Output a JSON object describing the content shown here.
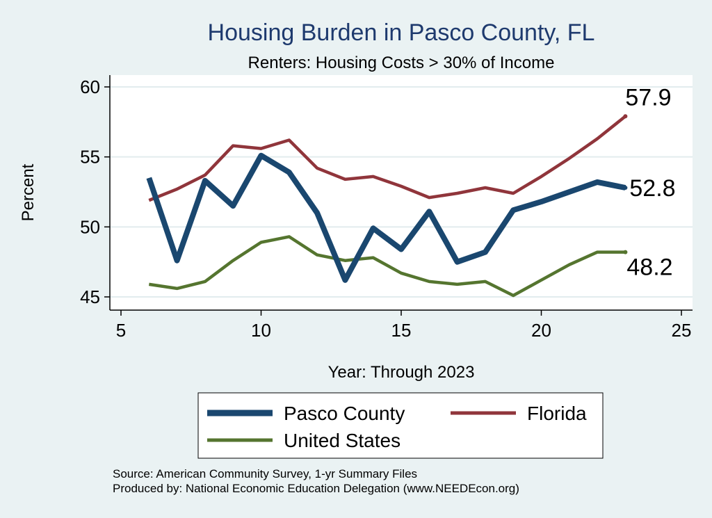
{
  "chart_data": {
    "type": "line",
    "title": "Housing Burden in Pasco County, FL",
    "subtitle": "Renters: Housing Costs > 30% of Income",
    "xlabel": "Year: Through 2023",
    "ylabel": "Percent",
    "xlim": [
      5,
      25
    ],
    "ylim": [
      45,
      60
    ],
    "xticks": [
      5,
      10,
      15,
      20,
      25
    ],
    "yticks": [
      45,
      50,
      55,
      60
    ],
    "grid": true,
    "series": [
      {
        "name": "Pasco County",
        "color": "#1a476f",
        "x": [
          6,
          7,
          8,
          9,
          10,
          11,
          12,
          13,
          14,
          15,
          16,
          17,
          18,
          19,
          20,
          21,
          22,
          23
        ],
        "values": [
          53.5,
          47.6,
          53.3,
          51.5,
          55.1,
          53.9,
          51.0,
          46.2,
          49.9,
          48.4,
          51.1,
          47.5,
          48.2,
          51.2,
          51.8,
          52.5,
          53.2,
          52.8
        ],
        "end_label": "52.8"
      },
      {
        "name": "Florida",
        "color": "#90353b",
        "x": [
          6,
          7,
          8,
          9,
          10,
          11,
          12,
          13,
          14,
          15,
          16,
          17,
          18,
          19,
          20,
          21,
          22,
          23
        ],
        "values": [
          51.9,
          52.7,
          53.7,
          55.8,
          55.6,
          56.2,
          54.2,
          53.4,
          53.6,
          52.9,
          52.1,
          52.4,
          52.8,
          52.4,
          53.6,
          54.9,
          56.3,
          57.9
        ],
        "end_label": "57.9"
      },
      {
        "name": "United States",
        "color": "#55752f",
        "x": [
          6,
          7,
          8,
          9,
          10,
          11,
          12,
          13,
          14,
          15,
          16,
          17,
          18,
          19,
          20,
          21,
          22,
          23
        ],
        "values": [
          45.9,
          45.6,
          46.1,
          47.6,
          48.9,
          49.3,
          48.0,
          47.6,
          47.8,
          46.7,
          46.1,
          45.9,
          46.1,
          45.1,
          46.2,
          47.3,
          48.2,
          48.2
        ],
        "end_label": "48.2"
      }
    ],
    "legend": [
      {
        "name": "Pasco County",
        "color": "#1a476f",
        "weight": "thick"
      },
      {
        "name": "Florida",
        "color": "#90353b",
        "weight": "medium"
      },
      {
        "name": "United States",
        "color": "#55752f",
        "weight": "medium"
      }
    ],
    "notes": [
      "Source: American Community Survey, 1-yr Summary Files",
      "Produced by: National Economic Education Delegation (www.NEEDEcon.org)"
    ]
  }
}
